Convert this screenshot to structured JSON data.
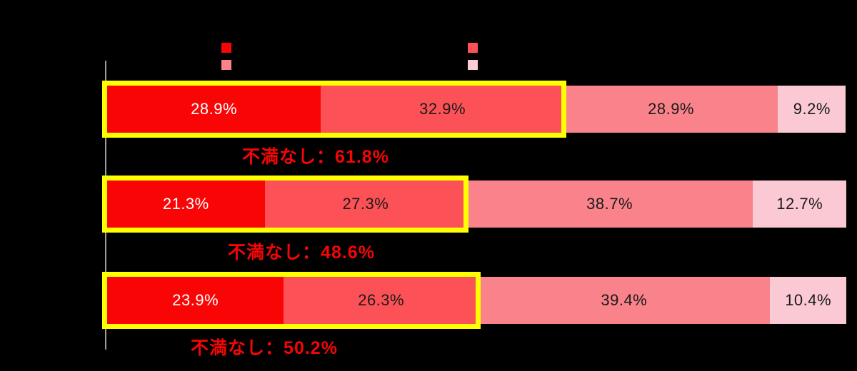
{
  "chart_data": {
    "type": "bar",
    "orientation": "horizontal",
    "stacked": true,
    "xlim": [
      0,
      100
    ],
    "grid": false,
    "legend_position": "top",
    "series_colors": [
      "#fa0505",
      "#fc5156",
      "#f9828b",
      "#fbc9d3"
    ],
    "rows": [
      {
        "values": [
          28.9,
          32.9,
          28.9,
          9.2
        ],
        "labels": [
          "28.9%",
          "32.9%",
          "28.9%",
          "9.2%"
        ],
        "annotation": "不満なし：61.8%",
        "highlight_segment_count": 2,
        "highlight_total": 61.8
      },
      {
        "values": [
          21.3,
          27.3,
          38.7,
          12.7
        ],
        "labels": [
          "21.3%",
          "27.3%",
          "38.7%",
          "12.7%"
        ],
        "annotation": "不満なし：48.6%",
        "highlight_segment_count": 2,
        "highlight_total": 48.6
      },
      {
        "values": [
          23.9,
          26.3,
          39.4,
          10.4
        ],
        "labels": [
          "23.9%",
          "26.3%",
          "39.4%",
          "10.4%"
        ],
        "annotation": "不満なし：50.2%",
        "highlight_segment_count": 2,
        "highlight_total": 50.2
      }
    ]
  },
  "legend": {
    "swatches": [
      {
        "name": "legend-swatch-1",
        "color": "#fa0505"
      },
      {
        "name": "legend-swatch-2",
        "color": "#fc5156"
      },
      {
        "name": "legend-swatch-3",
        "color": "#f9828b"
      },
      {
        "name": "legend-swatch-4",
        "color": "#fbccd6"
      }
    ]
  },
  "colors": {
    "background": "#000000",
    "axis_line": "#9b9b9b",
    "highlight_box": "#ffff00",
    "annotation_text": "#f50505",
    "segment_label_first": "#ffffff",
    "segment_label_rest": "#1a1a1a"
  }
}
